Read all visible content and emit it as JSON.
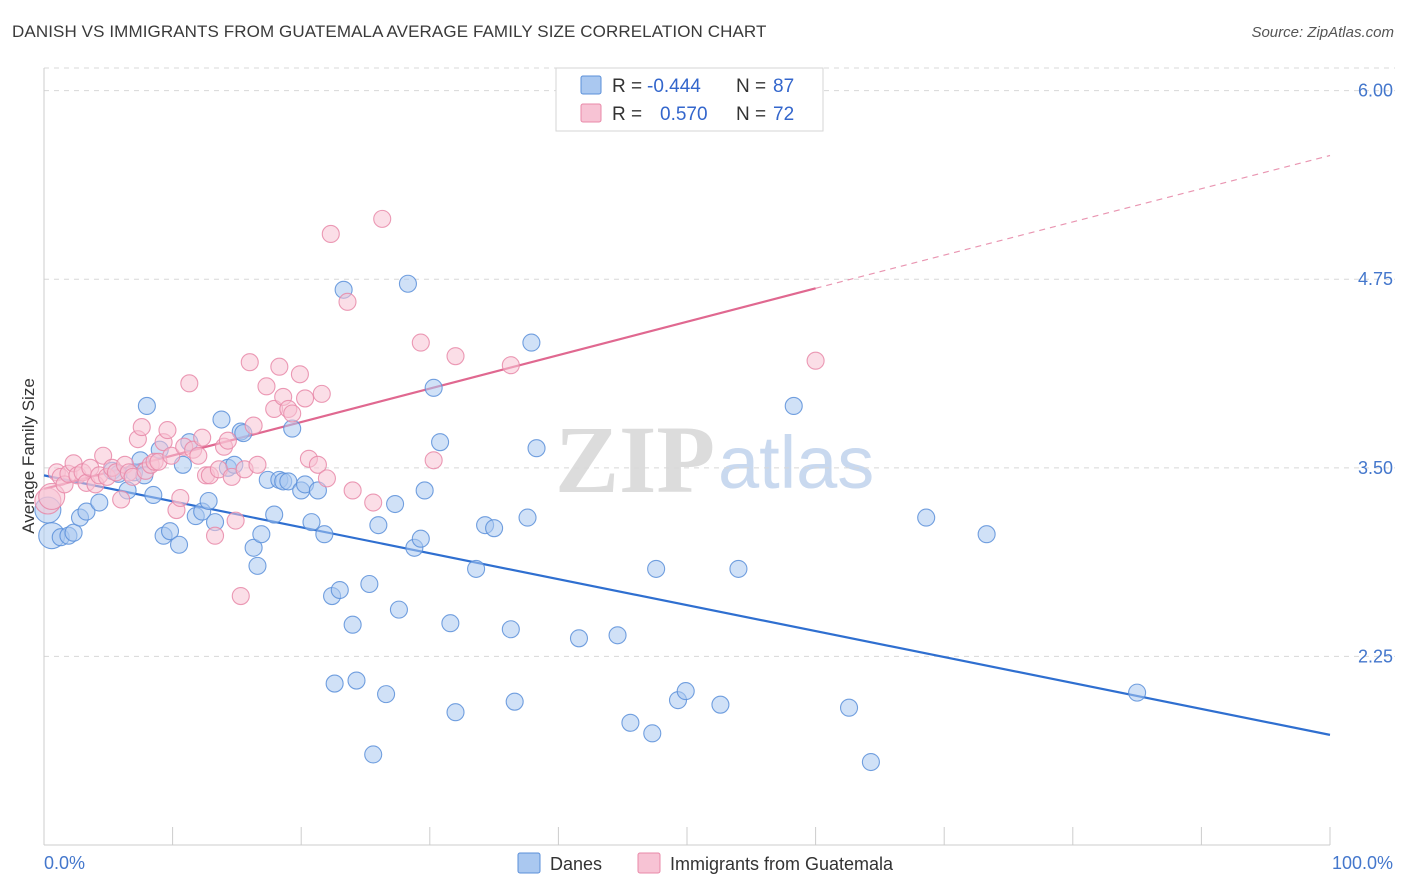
{
  "title": "DANISH VS IMMIGRANTS FROM GUATEMALA AVERAGE FAMILY SIZE CORRELATION CHART",
  "source": "Source: ZipAtlas.com",
  "watermark": {
    "zip": "ZIP",
    "atlas": "atlas"
  },
  "colors": {
    "danes": "#5b8fd9",
    "danes_fill": "#aac8f0",
    "danes_line": "#2f6fd0",
    "guatemala": "#e888a8",
    "guatemala_fill": "#f7c3d4",
    "guatemala_line": "#e06890",
    "grid": "#d8d8d8",
    "label": "#4477cc"
  },
  "legend": {
    "danes": {
      "r_label": "R =",
      "r_value": "-0.444",
      "n_label": "N =",
      "n_value": "87"
    },
    "guatemala": {
      "r_label": "R =",
      "r_value": "0.570",
      "n_label": "N =",
      "n_value": "72"
    }
  },
  "chart_data": {
    "type": "scatter",
    "title": "DANISH VS IMMIGRANTS FROM GUATEMALA AVERAGE FAMILY SIZE CORRELATION CHART",
    "xlabel": "",
    "ylabel": "Average Family Size",
    "xlim": [
      0,
      100
    ],
    "ylim": [
      1.0,
      6.15
    ],
    "x_tick_labels": [
      "0.0%",
      "100.0%"
    ],
    "y_ticks": [
      2.25,
      3.5,
      4.75,
      6.0
    ],
    "y_tick_labels": [
      "2.25",
      "3.50",
      "4.75",
      "6.00"
    ],
    "grid": true,
    "legend_position": "top-center",
    "series": [
      {
        "name": "Danes",
        "r": -0.444,
        "n": 87,
        "trend": {
          "x": [
            0,
            100
          ],
          "y": [
            3.45,
            1.73
          ],
          "dashed_from": null
        },
        "points": [
          [
            0.3,
            3.22
          ],
          [
            0.6,
            3.05
          ],
          [
            1.3,
            3.04
          ],
          [
            1.9,
            3.05
          ],
          [
            2.3,
            3.07
          ],
          [
            2.8,
            3.17
          ],
          [
            3.3,
            3.21
          ],
          [
            4.3,
            3.27
          ],
          [
            5.3,
            3.48
          ],
          [
            5.8,
            3.46
          ],
          [
            6.5,
            3.35
          ],
          [
            7.0,
            3.47
          ],
          [
            7.5,
            3.55
          ],
          [
            7.8,
            3.45
          ],
          [
            8.0,
            3.91
          ],
          [
            8.5,
            3.32
          ],
          [
            9.0,
            3.62
          ],
          [
            9.3,
            3.05
          ],
          [
            9.8,
            3.08
          ],
          [
            10.5,
            2.99
          ],
          [
            10.8,
            3.52
          ],
          [
            11.3,
            3.67
          ],
          [
            11.8,
            3.18
          ],
          [
            12.3,
            3.21
          ],
          [
            12.8,
            3.28
          ],
          [
            13.3,
            3.14
          ],
          [
            13.8,
            3.82
          ],
          [
            14.3,
            3.5
          ],
          [
            14.8,
            3.52
          ],
          [
            15.3,
            3.74
          ],
          [
            15.5,
            3.73
          ],
          [
            16.3,
            2.97
          ],
          [
            16.6,
            2.85
          ],
          [
            16.9,
            3.06
          ],
          [
            17.4,
            3.42
          ],
          [
            17.9,
            3.19
          ],
          [
            18.3,
            3.42
          ],
          [
            18.6,
            3.41
          ],
          [
            19.0,
            3.41
          ],
          [
            19.3,
            3.76
          ],
          [
            20.0,
            3.35
          ],
          [
            20.3,
            3.39
          ],
          [
            20.8,
            3.14
          ],
          [
            21.3,
            3.35
          ],
          [
            21.8,
            3.06
          ],
          [
            22.4,
            2.65
          ],
          [
            22.6,
            2.07
          ],
          [
            23.0,
            2.69
          ],
          [
            23.3,
            4.68
          ],
          [
            24.0,
            2.46
          ],
          [
            24.3,
            2.09
          ],
          [
            25.3,
            2.73
          ],
          [
            25.6,
            1.6
          ],
          [
            26.0,
            3.12
          ],
          [
            26.6,
            2.0
          ],
          [
            27.3,
            3.26
          ],
          [
            27.6,
            2.56
          ],
          [
            28.3,
            4.72
          ],
          [
            28.8,
            2.97
          ],
          [
            29.3,
            3.03
          ],
          [
            29.6,
            3.35
          ],
          [
            30.3,
            4.03
          ],
          [
            30.8,
            3.67
          ],
          [
            31.6,
            2.47
          ],
          [
            32.0,
            1.88
          ],
          [
            33.6,
            2.83
          ],
          [
            34.3,
            3.12
          ],
          [
            35.0,
            3.1
          ],
          [
            36.3,
            2.43
          ],
          [
            36.6,
            1.95
          ],
          [
            37.6,
            3.17
          ],
          [
            37.9,
            4.33
          ],
          [
            38.3,
            3.63
          ],
          [
            41.6,
            2.37
          ],
          [
            44.6,
            2.39
          ],
          [
            45.6,
            1.81
          ],
          [
            47.3,
            1.74
          ],
          [
            47.6,
            2.83
          ],
          [
            49.3,
            1.96
          ],
          [
            49.9,
            2.02
          ],
          [
            52.6,
            1.93
          ],
          [
            54.0,
            2.83
          ],
          [
            58.3,
            3.91
          ],
          [
            62.6,
            1.91
          ],
          [
            64.3,
            1.55
          ],
          [
            68.6,
            3.17
          ],
          [
            73.3,
            3.06
          ],
          [
            85.0,
            2.01
          ]
        ]
      },
      {
        "name": "Immigrants from Guatemala",
        "r": 0.57,
        "n": 72,
        "trend": {
          "x": [
            0,
            60,
            100
          ],
          "y": [
            3.36,
            4.69,
            5.57
          ],
          "dashed_from": 60
        },
        "points": [
          [
            0.3,
            3.28
          ],
          [
            0.6,
            3.31
          ],
          [
            1.0,
            3.47
          ],
          [
            1.3,
            3.44
          ],
          [
            1.6,
            3.39
          ],
          [
            1.9,
            3.46
          ],
          [
            2.3,
            3.53
          ],
          [
            2.6,
            3.45
          ],
          [
            3.0,
            3.47
          ],
          [
            3.3,
            3.4
          ],
          [
            3.6,
            3.5
          ],
          [
            4.0,
            3.39
          ],
          [
            4.3,
            3.45
          ],
          [
            4.6,
            3.58
          ],
          [
            4.9,
            3.44
          ],
          [
            5.3,
            3.5
          ],
          [
            5.6,
            3.47
          ],
          [
            6.0,
            3.29
          ],
          [
            6.3,
            3.52
          ],
          [
            6.6,
            3.47
          ],
          [
            6.9,
            3.44
          ],
          [
            7.3,
            3.69
          ],
          [
            7.6,
            3.77
          ],
          [
            7.9,
            3.48
          ],
          [
            8.3,
            3.52
          ],
          [
            8.6,
            3.54
          ],
          [
            8.9,
            3.54
          ],
          [
            9.3,
            3.67
          ],
          [
            9.6,
            3.75
          ],
          [
            9.9,
            3.58
          ],
          [
            10.3,
            3.22
          ],
          [
            10.6,
            3.3
          ],
          [
            10.9,
            3.64
          ],
          [
            11.3,
            4.06
          ],
          [
            11.6,
            3.62
          ],
          [
            12.0,
            3.58
          ],
          [
            12.3,
            3.7
          ],
          [
            12.6,
            3.45
          ],
          [
            12.9,
            3.45
          ],
          [
            13.3,
            3.05
          ],
          [
            13.6,
            3.49
          ],
          [
            14.0,
            3.64
          ],
          [
            14.3,
            3.68
          ],
          [
            14.6,
            3.44
          ],
          [
            14.9,
            3.15
          ],
          [
            15.3,
            2.65
          ],
          [
            15.6,
            3.49
          ],
          [
            16.0,
            4.2
          ],
          [
            16.3,
            3.78
          ],
          [
            16.6,
            3.52
          ],
          [
            17.3,
            4.04
          ],
          [
            17.9,
            3.89
          ],
          [
            18.3,
            4.17
          ],
          [
            18.6,
            3.97
          ],
          [
            19.0,
            3.89
          ],
          [
            19.3,
            3.86
          ],
          [
            19.9,
            4.12
          ],
          [
            20.3,
            3.96
          ],
          [
            20.6,
            3.56
          ],
          [
            21.3,
            3.52
          ],
          [
            21.6,
            3.99
          ],
          [
            22.0,
            3.43
          ],
          [
            22.3,
            5.05
          ],
          [
            23.6,
            4.6
          ],
          [
            24.0,
            3.35
          ],
          [
            25.6,
            3.27
          ],
          [
            26.3,
            5.15
          ],
          [
            29.3,
            4.33
          ],
          [
            30.3,
            3.55
          ],
          [
            32.0,
            4.24
          ],
          [
            36.3,
            4.18
          ],
          [
            60.0,
            4.21
          ]
        ]
      }
    ]
  },
  "bottom_legend": {
    "danes_label": "Danes",
    "guatemala_label": "Immigrants from Guatemala"
  }
}
